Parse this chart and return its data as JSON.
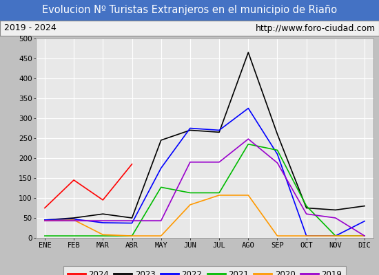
{
  "title": "Evolucion Nº Turistas Extranjeros en el municipio de Riaño",
  "subtitle_left": "2019 - 2024",
  "subtitle_right": "http://www.foro-ciudad.com",
  "title_bg_color": "#4472c4",
  "title_text_color": "#ffffff",
  "subtitle_bg_color": "#f0f0f0",
  "subtitle_text_color": "#000000",
  "plot_bg_color": "#e8e8e8",
  "grid_color": "#ffffff",
  "outer_bg_color": "#c0c0c0",
  "months": [
    "ENE",
    "FEB",
    "MAR",
    "ABR",
    "MAY",
    "JUN",
    "JUL",
    "AGO",
    "SEP",
    "OCT",
    "NOV",
    "DIC"
  ],
  "ylim": [
    0,
    500
  ],
  "yticks": [
    0,
    50,
    100,
    150,
    200,
    250,
    300,
    350,
    400,
    450,
    500
  ],
  "series": {
    "2024": {
      "color": "#ff0000",
      "data": [
        75,
        145,
        95,
        185,
        null,
        null,
        null,
        null,
        null,
        null,
        null,
        null
      ]
    },
    "2023": {
      "color": "#000000",
      "data": [
        45,
        50,
        60,
        50,
        245,
        270,
        265,
        465,
        260,
        75,
        70,
        80
      ]
    },
    "2022": {
      "color": "#0000ff",
      "data": [
        45,
        47,
        38,
        37,
        175,
        275,
        270,
        325,
        210,
        5,
        5,
        42
      ]
    },
    "2021": {
      "color": "#00bb00",
      "data": [
        5,
        5,
        5,
        5,
        127,
        113,
        113,
        235,
        220,
        80,
        5,
        5
      ]
    },
    "2020": {
      "color": "#ff9900",
      "data": [
        43,
        45,
        8,
        5,
        5,
        83,
        107,
        107,
        5,
        5,
        5,
        5
      ]
    },
    "2019": {
      "color": "#9900cc",
      "data": [
        43,
        43,
        43,
        43,
        43,
        190,
        190,
        248,
        188,
        60,
        50,
        5
      ]
    }
  },
  "legend_order": [
    "2024",
    "2023",
    "2022",
    "2021",
    "2020",
    "2019"
  ]
}
